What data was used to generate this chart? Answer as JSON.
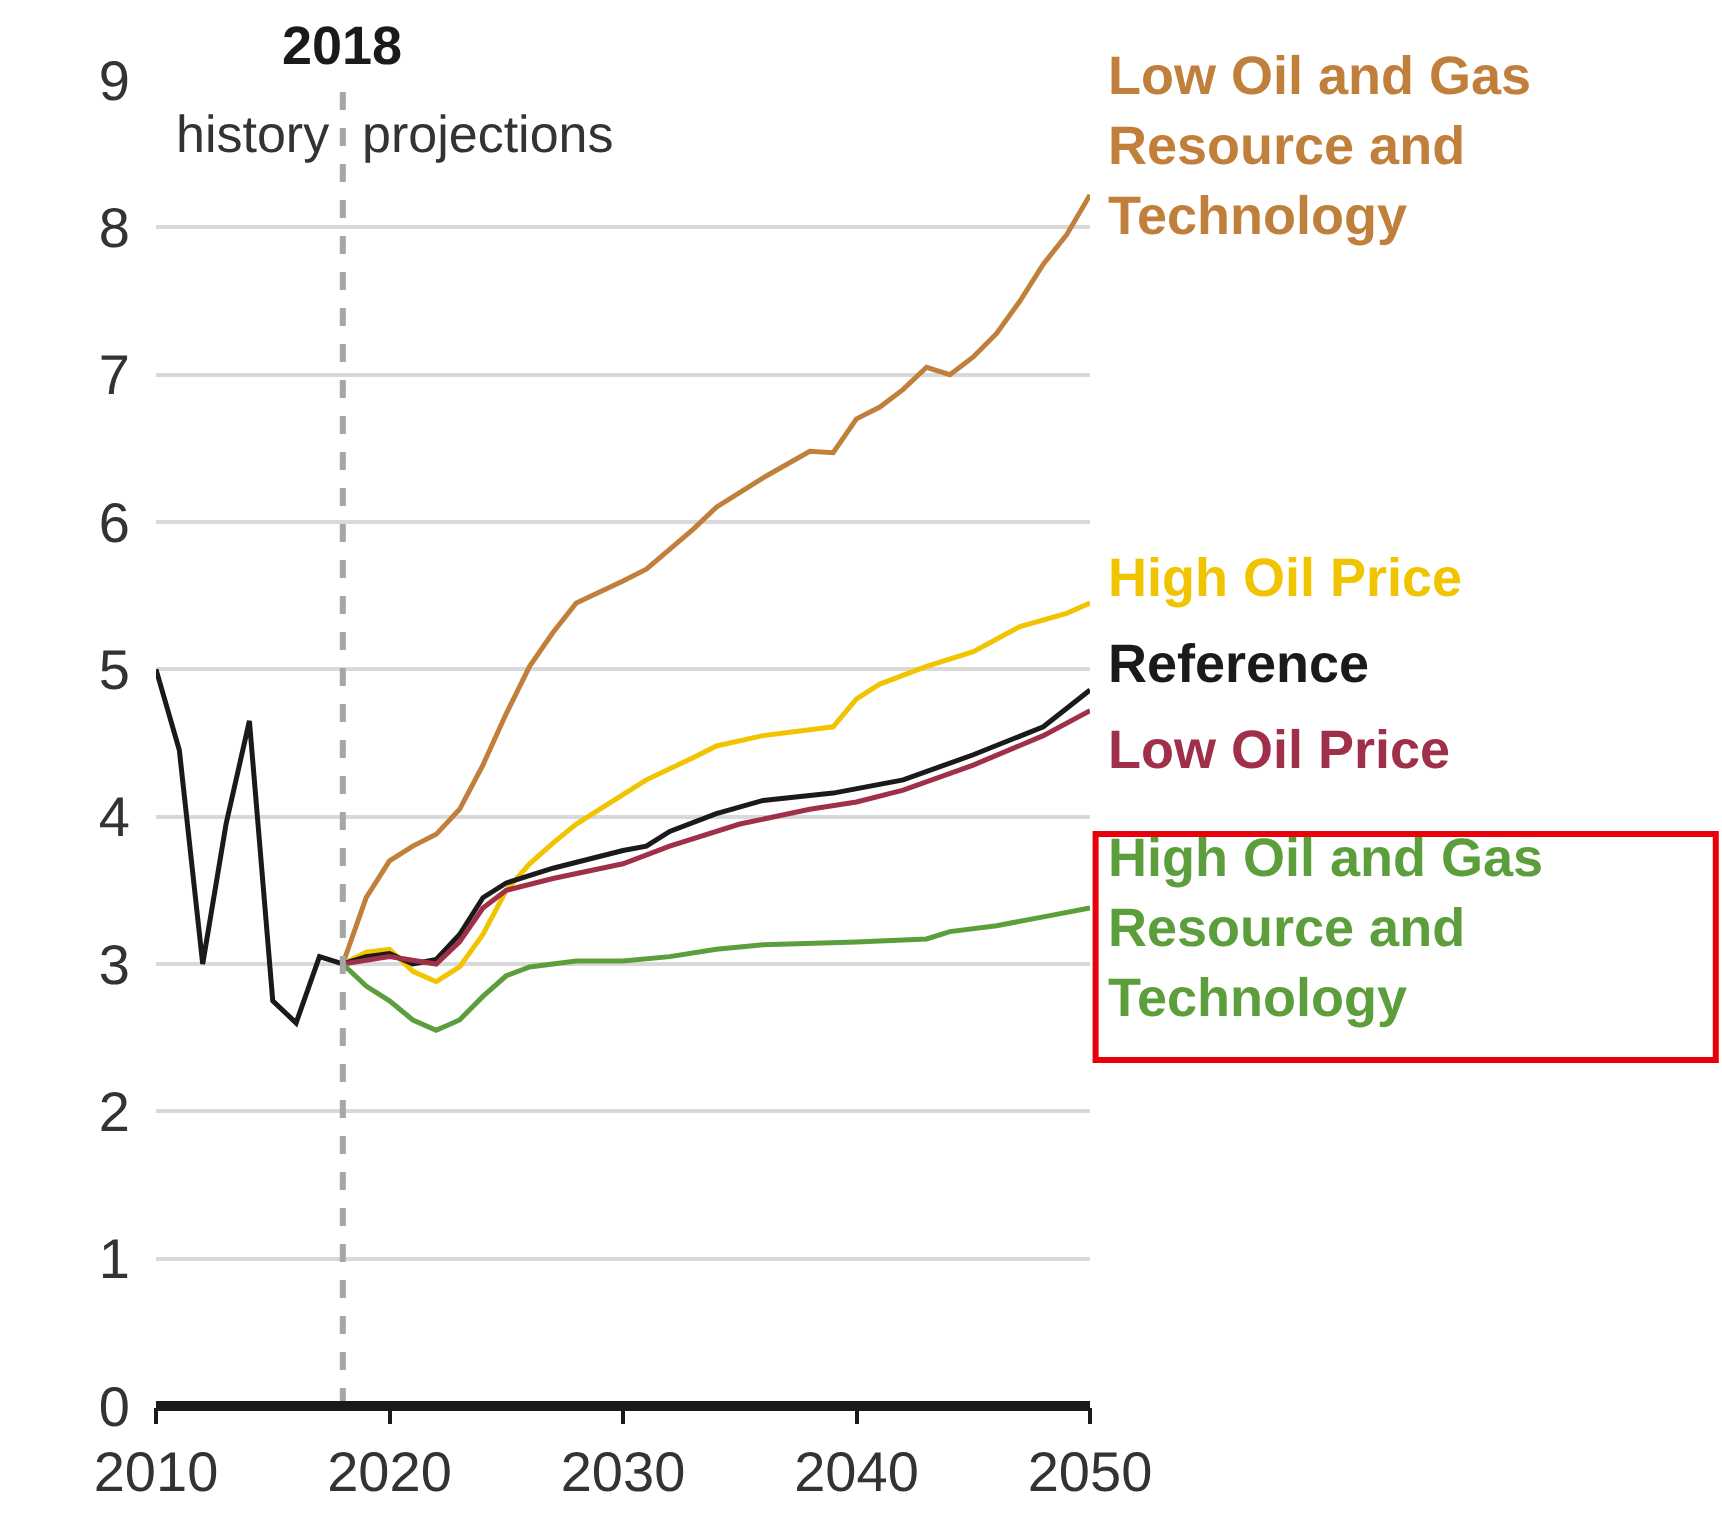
{
  "chart_data": {
    "type": "line",
    "xlim": [
      2010,
      2050
    ],
    "xticks": [
      2010,
      2020,
      2030,
      2040,
      2050
    ],
    "ylim": [
      0,
      9
    ],
    "yticks": [
      0,
      1,
      2,
      3,
      4,
      5,
      6,
      7,
      8,
      9
    ],
    "grid": "y",
    "legend": false,
    "line_style": "solid",
    "marker": "none",
    "ref_lines": [
      {
        "axis": "x",
        "value": 2018,
        "label": "2018",
        "color": "#a6a6a6",
        "line_style": "dashed"
      }
    ],
    "annotations": [
      "history",
      "projections"
    ],
    "series": [
      {
        "name": "Low Oil and Gas Resource and Technology",
        "color": "#c0803c",
        "x": [
          2018,
          2019,
          2020,
          2021,
          2022,
          2023,
          2024,
          2025,
          2026,
          2027,
          2028,
          2030,
          2031,
          2033,
          2034,
          2036,
          2038,
          2039,
          2040,
          2041,
          2042,
          2043,
          2044,
          2045,
          2046,
          2047,
          2048,
          2049,
          2050
        ],
        "values": [
          3.0,
          3.45,
          3.7,
          3.8,
          3.88,
          4.05,
          4.35,
          4.7,
          5.02,
          5.25,
          5.45,
          5.6,
          5.68,
          5.95,
          6.1,
          6.3,
          6.48,
          6.47,
          6.7,
          6.78,
          6.9,
          7.05,
          7.0,
          7.12,
          7.28,
          7.5,
          7.75,
          7.95,
          8.22
        ]
      },
      {
        "name": "High Oil Price",
        "color": "#f0c400",
        "x": [
          2018,
          2019,
          2020,
          2021,
          2022,
          2023,
          2024,
          2025,
          2026,
          2027,
          2028,
          2030,
          2031,
          2033,
          2034,
          2036,
          2039,
          2040,
          2041,
          2043,
          2045,
          2047,
          2049,
          2050
        ],
        "values": [
          3.0,
          3.08,
          3.1,
          2.95,
          2.88,
          2.98,
          3.2,
          3.5,
          3.68,
          3.82,
          3.95,
          4.15,
          4.25,
          4.4,
          4.48,
          4.55,
          4.61,
          4.8,
          4.9,
          5.02,
          5.12,
          5.29,
          5.38,
          5.45
        ]
      },
      {
        "name": "Reference",
        "color": "#1a1a1a",
        "x": [
          2010,
          2011,
          2012,
          2013,
          2014,
          2015,
          2016,
          2017,
          2018,
          2019,
          2020,
          2021,
          2022,
          2023,
          2024,
          2025,
          2027,
          2030,
          2031,
          2032,
          2034,
          2036,
          2039,
          2042,
          2045,
          2048,
          2050
        ],
        "values": [
          5.0,
          4.45,
          3.0,
          3.95,
          4.65,
          2.75,
          2.6,
          3.05,
          3.0,
          3.05,
          3.07,
          3.0,
          3.03,
          3.2,
          3.45,
          3.55,
          3.65,
          3.77,
          3.8,
          3.9,
          4.02,
          4.11,
          4.16,
          4.25,
          4.42,
          4.61,
          4.86
        ]
      },
      {
        "name": "Low Oil Price",
        "color": "#a0304a",
        "x": [
          2018,
          2020,
          2022,
          2023,
          2024,
          2025,
          2027,
          2030,
          2032,
          2035,
          2038,
          2040,
          2042,
          2045,
          2048,
          2050
        ],
        "values": [
          3.0,
          3.05,
          3.0,
          3.15,
          3.38,
          3.5,
          3.58,
          3.68,
          3.8,
          3.95,
          4.05,
          4.1,
          4.18,
          4.35,
          4.55,
          4.72
        ]
      },
      {
        "name": "High Oil and Gas Resource and Technology",
        "color": "#5c9e3c",
        "x": [
          2018,
          2019,
          2020,
          2021,
          2022,
          2023,
          2024,
          2025,
          2026,
          2028,
          2030,
          2032,
          2034,
          2036,
          2040,
          2043,
          2044,
          2046,
          2048,
          2050
        ],
        "values": [
          3.0,
          2.85,
          2.75,
          2.62,
          2.55,
          2.62,
          2.78,
          2.92,
          2.98,
          3.02,
          3.02,
          3.05,
          3.1,
          3.13,
          3.15,
          3.17,
          3.22,
          3.26,
          3.32,
          3.38
        ]
      }
    ]
  }
}
